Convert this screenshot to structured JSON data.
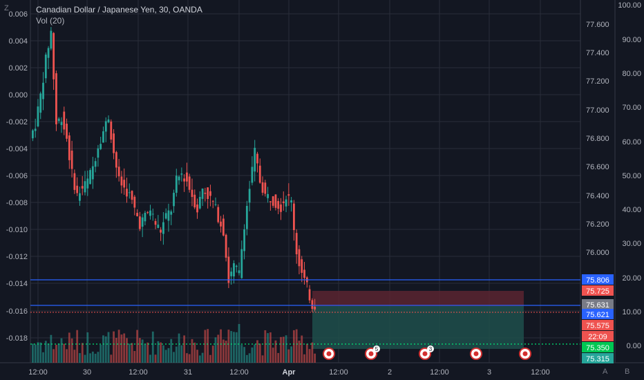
{
  "header": {
    "title": "Canadian Dollar / Japanese Yen, 30, OANDA",
    "subtitle": "Vol (20)"
  },
  "corners": {
    "zoom_left": "Z",
    "auto_label": "A",
    "scale_label": "B"
  },
  "colors": {
    "background": "#131722",
    "up": "#26a69a",
    "down": "#ef5350",
    "grid": "#2a2e39",
    "text": "#b2b5be",
    "line_blue": "#2962ff",
    "zone_green": "#1e4f4b",
    "zone_red": "#5b2430",
    "dotted_green": "#00e676"
  },
  "chart_data": {
    "type": "candlestick",
    "title": "Canadian Dollar / Japanese Yen, 30, OANDA",
    "x_ticks": [
      "12:00",
      "30",
      "12:00",
      "31",
      "12:00",
      "Apr",
      "12:00",
      "2",
      "12:00",
      "3",
      "12:00"
    ],
    "price_axis": {
      "ticks": [
        "77.600",
        "77.400",
        "77.200",
        "77.000",
        "76.800",
        "76.600",
        "76.400",
        "76.200",
        "76.000"
      ],
      "range": [
        75.3,
        77.7
      ]
    },
    "left_axis": {
      "ticks": [
        "0.006",
        "0.004",
        "0.002",
        "0.000",
        "-0.002",
        "-0.004",
        "-0.006",
        "-0.008",
        "-0.010",
        "-0.012",
        "-0.014",
        "-0.016",
        "-0.018"
      ]
    },
    "volume_axis": {
      "ticks": [
        "100.00",
        "90.00",
        "80.00",
        "70.00",
        "60.00",
        "50.00",
        "40.00",
        "30.00",
        "20.00",
        "10.00",
        "0.00"
      ]
    },
    "price_tags": [
      {
        "value": "75.806",
        "color": "#2962ff"
      },
      {
        "value": "75.725",
        "color": "#ef5350"
      },
      {
        "value": "75.631",
        "color": "#787b86"
      },
      {
        "value": "75.621",
        "color": "#2962ff"
      },
      {
        "value": "75.575",
        "color": "#ef5350"
      },
      {
        "value": "22:09",
        "color": "#ef5350"
      },
      {
        "value": "75.350",
        "color": "#00c853"
      },
      {
        "value": "75.315",
        "color": "#26a69a"
      }
    ],
    "anchors": [
      [
        0,
        76.8
      ],
      [
        2,
        76.9
      ],
      [
        4,
        77.1
      ],
      [
        6,
        77.35
      ],
      [
        8,
        77.55
      ],
      [
        10,
        76.9
      ],
      [
        12,
        76.95
      ],
      [
        14,
        76.8
      ],
      [
        16,
        76.55
      ],
      [
        18,
        76.4
      ],
      [
        20,
        76.45
      ],
      [
        22,
        76.5
      ],
      [
        24,
        76.6
      ],
      [
        26,
        76.75
      ],
      [
        28,
        76.85
      ],
      [
        30,
        76.95
      ],
      [
        32,
        76.7
      ],
      [
        34,
        76.5
      ],
      [
        36,
        76.45
      ],
      [
        38,
        76.4
      ],
      [
        40,
        76.3
      ],
      [
        42,
        76.2
      ],
      [
        44,
        76.25
      ],
      [
        46,
        76.3
      ],
      [
        48,
        76.2
      ],
      [
        50,
        76.15
      ],
      [
        52,
        76.25
      ],
      [
        54,
        76.3
      ],
      [
        56,
        76.5
      ],
      [
        58,
        76.55
      ],
      [
        60,
        76.5
      ],
      [
        62,
        76.4
      ],
      [
        64,
        76.3
      ],
      [
        66,
        76.45
      ],
      [
        68,
        76.4
      ],
      [
        70,
        76.35
      ],
      [
        72,
        76.25
      ],
      [
        74,
        76.15
      ],
      [
        76,
        75.8
      ],
      [
        78,
        75.9
      ],
      [
        80,
        75.85
      ],
      [
        82,
        76.2
      ],
      [
        84,
        76.45
      ],
      [
        86,
        76.7
      ],
      [
        88,
        76.5
      ],
      [
        90,
        76.4
      ],
      [
        92,
        76.38
      ],
      [
        94,
        76.35
      ],
      [
        96,
        76.32
      ],
      [
        98,
        76.4
      ],
      [
        100,
        76.35
      ],
      [
        102,
        76.0
      ],
      [
        104,
        75.85
      ],
      [
        106,
        75.75
      ],
      [
        108,
        75.63
      ]
    ],
    "volume_range": [
      0,
      20
    ]
  }
}
